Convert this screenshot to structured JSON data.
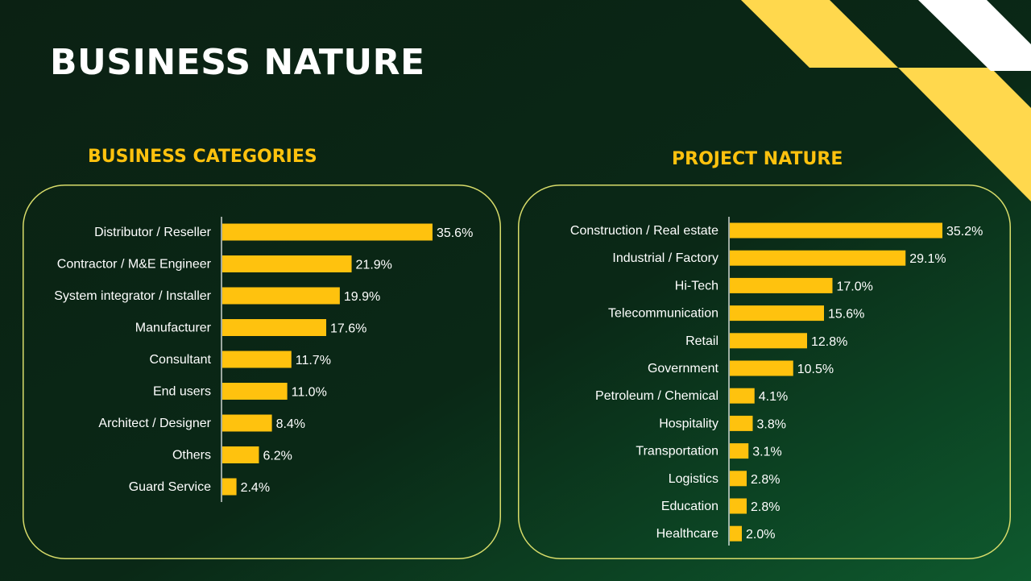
{
  "page": {
    "title": "BUSINESS NATURE"
  },
  "colors": {
    "background_dark": "#0b2113",
    "background_green": "#0e5a2e",
    "bar": "#ffc20e",
    "accent_yellow": "#ffd84d",
    "stripe_white": "#ffffff",
    "panel_border": "#d8dc6a",
    "text": "#ffffff"
  },
  "chart_data": [
    {
      "type": "bar",
      "orientation": "horizontal",
      "title": "BUSINESS CATEGORIES",
      "categories": [
        "Distributor / Reseller",
        "Contractor / M&E Engineer",
        "System integrator / Installer",
        "Manufacturer",
        "Consultant",
        "End users",
        "Architect / Designer",
        "Others",
        "Guard Service"
      ],
      "values": [
        35.6,
        21.9,
        19.9,
        17.6,
        11.7,
        11.0,
        8.4,
        6.2,
        2.4
      ],
      "value_labels": [
        "35.6%",
        "21.9%",
        "19.9%",
        "17.6%",
        "11.7%",
        "11.0%",
        "8.4%",
        "6.2%",
        "2.4%"
      ],
      "unit": "%",
      "grid": false,
      "legend": "none"
    },
    {
      "type": "bar",
      "orientation": "horizontal",
      "title": "PROJECT NATURE",
      "categories": [
        "Construction / Real estate",
        "Industrial / Factory",
        "Hi-Tech",
        "Telecommunication",
        "Retail",
        "Government",
        "Petroleum / Chemical",
        "Hospitality",
        "Transportation",
        "Logistics",
        "Education",
        "Healthcare"
      ],
      "values": [
        35.2,
        29.1,
        17.0,
        15.6,
        12.8,
        10.5,
        4.1,
        3.8,
        3.1,
        2.8,
        2.8,
        2.0
      ],
      "value_labels": [
        "35.2%",
        "29.1%",
        "17.0%",
        "15.6%",
        "12.8%",
        "10.5%",
        "4.1%",
        "3.8%",
        "3.1%",
        "2.8%",
        "2.8%",
        "2.0%"
      ],
      "unit": "%",
      "grid": false,
      "legend": "none"
    }
  ]
}
